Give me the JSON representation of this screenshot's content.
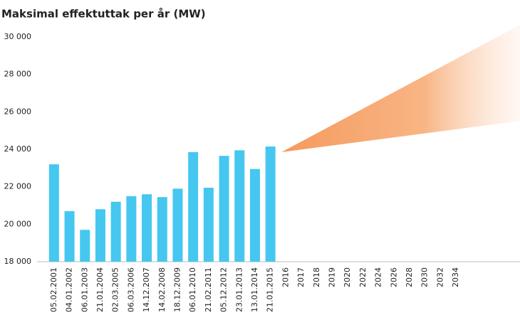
{
  "chart_data": {
    "type": "bar",
    "title": "Maksimal effektuttak per år (MW)",
    "categories": [
      "05.02.2001",
      "04.01.2002",
      "06.01.2003",
      "21.01.2004",
      "02.03.2005",
      "06.03.2006",
      "14.12.2007",
      "14.02.2008",
      "18.12.2009",
      "06.01.2010",
      "21.02.2011",
      "05.12.2012",
      "23.01.2013",
      "13.01.2014",
      "21.01.2015",
      "2016",
      "2017",
      "2018",
      "2019",
      "2020",
      "2022",
      "2024",
      "2026",
      "2028",
      "2030",
      "2032",
      "2034"
    ],
    "values": [
      23200,
      20700,
      19700,
      20800,
      21200,
      21500,
      21600,
      21450,
      21900,
      23850,
      21950,
      23650,
      23950,
      22950,
      24150,
      null,
      null,
      null,
      null,
      null,
      null,
      null,
      null,
      null,
      null,
      null,
      null
    ],
    "color": "#45c7f0",
    "ylim": [
      18000,
      30000
    ],
    "yticks": [
      {
        "value": 18000,
        "label": "18 000"
      },
      {
        "value": 20000,
        "label": "20 000"
      },
      {
        "value": 22000,
        "label": "22 000"
      },
      {
        "value": 24000,
        "label": "24 000"
      },
      {
        "value": 26000,
        "label": "26 000"
      },
      {
        "value": 28000,
        "label": "28 000"
      },
      {
        "value": 30000,
        "label": "30 000"
      }
    ],
    "grid": false
  }
}
